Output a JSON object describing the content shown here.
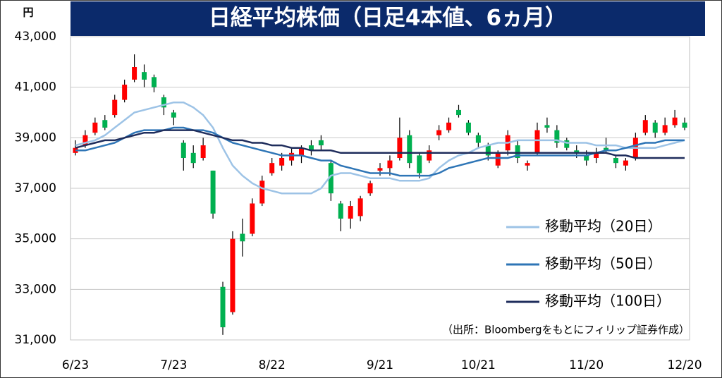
{
  "chart_data": {
    "type": "candlestick",
    "title": "日経平均株価（日足4本値、6ヵ月）",
    "y_unit": "円",
    "source": "（出所：Bloombergをもとにフィリップ証券作成）",
    "categories": [
      "6/23",
      null,
      null,
      null,
      null,
      null,
      null,
      null,
      null,
      null,
      "7/23",
      null,
      null,
      null,
      null,
      null,
      null,
      null,
      null,
      null,
      "8/22",
      null,
      null,
      null,
      null,
      null,
      null,
      null,
      null,
      null,
      null,
      "9/21",
      null,
      null,
      null,
      null,
      null,
      null,
      null,
      null,
      null,
      "10/21",
      null,
      null,
      null,
      null,
      null,
      null,
      null,
      null,
      null,
      null,
      "11/20",
      null,
      null,
      null,
      null,
      null,
      null,
      null,
      null,
      null,
      "12/20"
    ],
    "up_color": "#ff0000",
    "down_color": "#00b050",
    "ohlc": {
      "open": [
        38400,
        38700,
        39200,
        39700,
        39900,
        40500,
        41300,
        41600,
        41400,
        40600,
        40000,
        38800,
        38400,
        38200,
        37700,
        33100,
        32100,
        35200,
        35200,
        36400,
        37600,
        37900,
        38100,
        38300,
        38700,
        38900,
        38000,
        36400,
        35800,
        35900,
        36800,
        37700,
        37800,
        38200,
        39100,
        38300,
        38100,
        39100,
        39300,
        40100,
        39600,
        39100,
        38700,
        37900,
        38500,
        38700,
        37900,
        38400,
        39500,
        39300,
        38900,
        38500,
        38300,
        38200,
        38600,
        38200,
        37900,
        38200,
        39200,
        39600,
        39200,
        39500,
        39600
      ],
      "high": [
        38900,
        39300,
        39800,
        39900,
        40700,
        41300,
        42300,
        41900,
        41500,
        40700,
        40100,
        38900,
        38700,
        39000,
        37700,
        33300,
        35300,
        35800,
        36600,
        37500,
        38200,
        38400,
        38600,
        38700,
        38900,
        39100,
        38100,
        36500,
        36500,
        36700,
        37300,
        38000,
        38300,
        39800,
        39300,
        38400,
        38700,
        39500,
        39800,
        40300,
        39700,
        39200,
        38800,
        38500,
        39300,
        38900,
        38100,
        39600,
        39800,
        39500,
        39000,
        38700,
        38500,
        38600,
        39000,
        38300,
        38200,
        39200,
        39900,
        39700,
        39800,
        40100,
        39800
      ],
      "low": [
        38300,
        38600,
        39100,
        39300,
        39800,
        40400,
        41200,
        41000,
        40800,
        39900,
        39500,
        37700,
        37800,
        38100,
        35800,
        31200,
        32000,
        34300,
        35100,
        36300,
        37500,
        37700,
        37900,
        38000,
        38300,
        38500,
        36500,
        35300,
        35400,
        35700,
        36700,
        37500,
        37500,
        38100,
        37800,
        37400,
        38000,
        38900,
        39200,
        39800,
        39100,
        38600,
        38100,
        37800,
        38300,
        38000,
        37700,
        38300,
        39200,
        38600,
        38500,
        38200,
        37900,
        38000,
        38400,
        37800,
        37700,
        38100,
        39100,
        39000,
        39100,
        39400,
        39300
      ],
      "close": [
        38600,
        39100,
        39600,
        39400,
        40500,
        41100,
        41800,
        41300,
        41000,
        40200,
        39800,
        38200,
        38000,
        38700,
        36000,
        31500,
        35000,
        34900,
        36400,
        37300,
        38000,
        38200,
        38400,
        38600,
        38500,
        38700,
        36800,
        35800,
        36300,
        36600,
        37200,
        37800,
        38100,
        39000,
        38000,
        37600,
        38500,
        39300,
        39600,
        39900,
        39200,
        38800,
        38300,
        38400,
        39100,
        38200,
        38000,
        39300,
        39400,
        38800,
        38600,
        38400,
        38100,
        38400,
        38500,
        38000,
        38100,
        39000,
        39700,
        39200,
        39500,
        39800,
        39400
      ]
    },
    "series": [
      {
        "name": "移動平均（20日）",
        "color": "#9dc3e6",
        "values": [
          38700,
          38800,
          38900,
          39100,
          39400,
          39700,
          40000,
          40100,
          40200,
          40300,
          40400,
          40400,
          40200,
          39900,
          39400,
          38600,
          37900,
          37500,
          37200,
          37000,
          36900,
          36800,
          36800,
          36800,
          36800,
          37000,
          37500,
          37600,
          37600,
          37500,
          37400,
          37400,
          37400,
          37300,
          37300,
          37300,
          37400,
          37800,
          38100,
          38300,
          38400,
          38600,
          38700,
          38800,
          38800,
          38900,
          38900,
          38900,
          38900,
          38900,
          38800,
          38800,
          38800,
          38700,
          38700,
          38700,
          38600,
          38600,
          38600,
          38600,
          38700,
          38800,
          38900
        ]
      },
      {
        "name": "移動平均（50日）",
        "color": "#2e75b6",
        "values": [
          38500,
          38500,
          38600,
          38700,
          38800,
          39000,
          39200,
          39300,
          39300,
          39300,
          39400,
          39400,
          39300,
          39300,
          39200,
          39000,
          38800,
          38700,
          38600,
          38500,
          38400,
          38300,
          38300,
          38300,
          38200,
          38100,
          38100,
          37900,
          37800,
          37700,
          37600,
          37600,
          37600,
          37500,
          37500,
          37500,
          37500,
          37600,
          37800,
          37900,
          38000,
          38100,
          38200,
          38200,
          38200,
          38300,
          38300,
          38300,
          38300,
          38300,
          38300,
          38300,
          38300,
          38400,
          38500,
          38500,
          38600,
          38700,
          38800,
          38800,
          38900,
          38900,
          38900
        ]
      },
      {
        "name": "移動平均（100日）",
        "color": "#1f2d5c",
        "values": [
          38600,
          38700,
          38800,
          38900,
          38900,
          39000,
          39100,
          39200,
          39200,
          39300,
          39300,
          39300,
          39300,
          39200,
          39100,
          39000,
          38900,
          38900,
          38800,
          38800,
          38700,
          38700,
          38600,
          38600,
          38500,
          38500,
          38500,
          38400,
          38400,
          38400,
          38400,
          38400,
          38400,
          38400,
          38400,
          38400,
          38400,
          38400,
          38400,
          38400,
          38400,
          38400,
          38400,
          38400,
          38400,
          38400,
          38400,
          38400,
          38400,
          38400,
          38400,
          38400,
          38400,
          38400,
          38400,
          38300,
          38300,
          38200,
          38200,
          38200,
          38200,
          38200,
          38200
        ]
      }
    ],
    "ylim": [
      31000,
      43000
    ],
    "yticks": [
      {
        "value": 31000,
        "label": "31,000"
      },
      {
        "value": 33000,
        "label": "33,000"
      },
      {
        "value": 35000,
        "label": "35,000"
      },
      {
        "value": 37000,
        "label": "37,000"
      },
      {
        "value": 39000,
        "label": "39,000"
      },
      {
        "value": 41000,
        "label": "41,000"
      },
      {
        "value": 43000,
        "label": "43,000"
      }
    ],
    "grid": true
  }
}
